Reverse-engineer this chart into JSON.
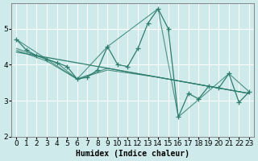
{
  "xlabel": "Humidex (Indice chaleur)",
  "background_color": "#ceeaea",
  "line_color": "#2e7d6e",
  "grid_color": "#ffffff",
  "xlim": [
    -0.5,
    23.5
  ],
  "ylim": [
    2.0,
    5.7
  ],
  "yticks": [
    2,
    3,
    4,
    5
  ],
  "xticks": [
    0,
    1,
    2,
    3,
    4,
    5,
    6,
    7,
    8,
    9,
    10,
    11,
    12,
    13,
    14,
    15,
    16,
    17,
    18,
    19,
    20,
    21,
    22,
    23
  ],
  "series": [
    [
      0,
      4.7
    ],
    [
      1,
      4.4
    ],
    [
      2,
      4.25
    ],
    [
      3,
      4.15
    ],
    [
      4,
      4.05
    ],
    [
      5,
      3.95
    ],
    [
      6,
      3.6
    ],
    [
      7,
      3.65
    ],
    [
      8,
      3.85
    ],
    [
      9,
      4.5
    ],
    [
      10,
      4.0
    ],
    [
      11,
      3.95
    ],
    [
      12,
      4.45
    ],
    [
      13,
      5.15
    ],
    [
      14,
      5.55
    ],
    [
      15,
      5.0
    ],
    [
      16,
      2.55
    ],
    [
      17,
      3.2
    ],
    [
      18,
      3.05
    ],
    [
      19,
      3.4
    ],
    [
      20,
      3.35
    ],
    [
      21,
      3.75
    ],
    [
      22,
      2.95
    ],
    [
      23,
      3.25
    ]
  ],
  "trend_line": [
    [
      0,
      4.35
    ],
    [
      23,
      3.2
    ]
  ],
  "extra_lines": [
    [
      [
        0,
        4.7
      ],
      [
        6,
        3.6
      ],
      [
        9,
        4.5
      ],
      [
        14,
        5.55
      ],
      [
        16,
        2.55
      ],
      [
        21,
        3.75
      ],
      [
        23,
        3.25
      ]
    ],
    [
      [
        0,
        4.45
      ],
      [
        4,
        4.05
      ],
      [
        6,
        3.6
      ],
      [
        9,
        3.9
      ],
      [
        14,
        3.65
      ],
      [
        21,
        3.3
      ],
      [
        23,
        3.2
      ]
    ],
    [
      [
        0,
        4.4
      ],
      [
        3,
        4.1
      ],
      [
        6,
        3.6
      ],
      [
        9,
        3.85
      ],
      [
        14,
        3.65
      ],
      [
        21,
        3.3
      ],
      [
        23,
        3.2
      ]
    ]
  ],
  "marker": "+",
  "markersize": 4,
  "linewidth": 0.9,
  "label_fontsize": 7,
  "tick_fontsize": 6.5
}
